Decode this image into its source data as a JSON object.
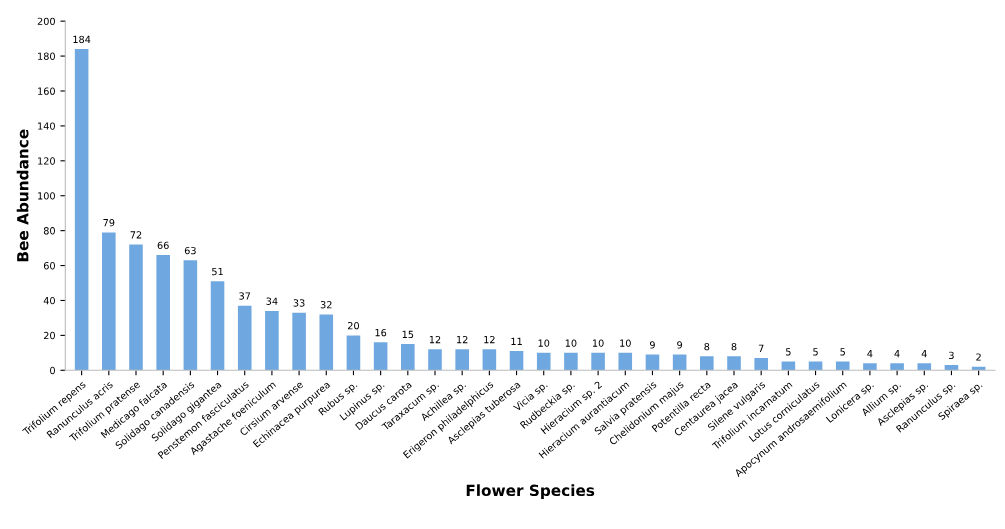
{
  "chart_data": {
    "type": "bar",
    "xlabel": "Flower Species",
    "ylabel": "Bee Abundance",
    "categories": [
      "Trifolium repens",
      "Ranunculus acris",
      "Trifolium pratense",
      "Medicago falcata",
      "Solidago canadensis",
      "Solidago gigantea",
      "Penstemon fasciculatus",
      "Agastache foeniculum",
      "Cirsium arvense",
      "Echinacea purpurea",
      "Rubus sp.",
      "Lupinus sp.",
      "Daucus carota",
      "Taraxacum sp.",
      "Achillea sp.",
      "Erigeron philadelphicus",
      "Asclepias tuberosa",
      "Vicia sp.",
      "Rudbeckia sp.",
      "Hieracium sp. 2",
      "Hieracium aurantiacum",
      "Salvia pratensis",
      "Chelidonium majus",
      "Potentilla recta",
      "Centaurea jacea",
      "Silene vulgaris",
      "Trifolium incarnatum",
      "Lotus corniculatus",
      "Apocynum androsaemifolium",
      "Lonicera sp.",
      "Allium sp.",
      "Asclepias sp.",
      "Ranunculus sp.",
      "Spiraea sp."
    ],
    "values": [
      184,
      79,
      72,
      66,
      63,
      51,
      37,
      34,
      33,
      32,
      20,
      16,
      15,
      12,
      12,
      12,
      11,
      10,
      10,
      10,
      10,
      9,
      9,
      8,
      8,
      7,
      5,
      5,
      5,
      4,
      4,
      4,
      3,
      2
    ],
    "color": "#6fa8e0",
    "ylim": [
      0,
      200
    ],
    "yticks": [
      0,
      20,
      40,
      60,
      80,
      100,
      120,
      140,
      160,
      180,
      200
    ],
    "data_labels": true,
    "grid": false
  }
}
